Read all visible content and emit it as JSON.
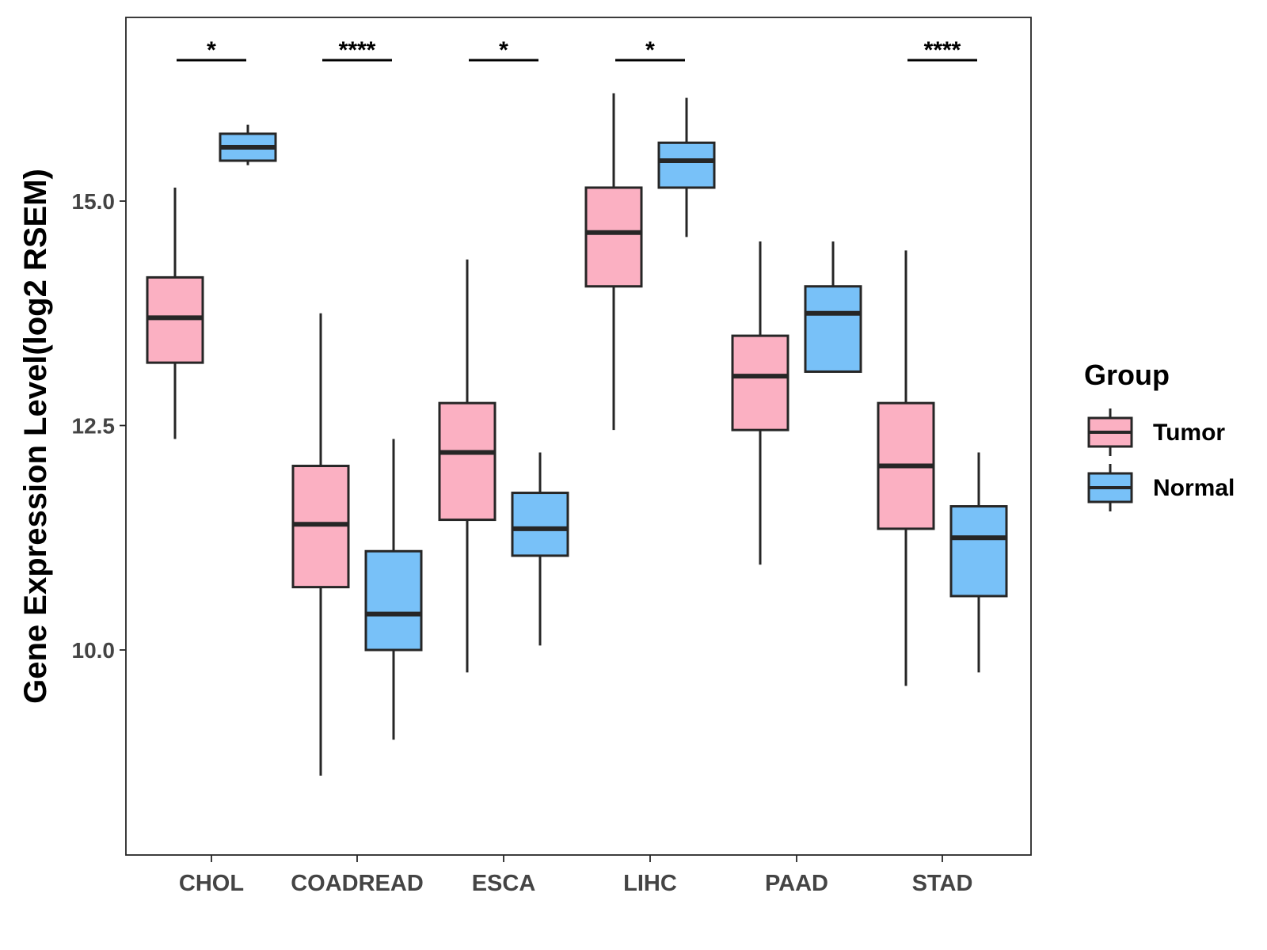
{
  "chart_data": {
    "type": "boxplot",
    "title": "",
    "xlabel": "",
    "ylabel": "Gene Expression Level(log2 RSEM)",
    "ylim": [
      7.75,
      17.1
    ],
    "yticks": [
      10.0,
      12.5,
      15.0
    ],
    "ytick_labels": [
      "10.0",
      "12.5",
      "15.0"
    ],
    "grid": false,
    "categories": [
      "CHOL",
      "COADREAD",
      "ESCA",
      "LIHC",
      "PAAD",
      "STAD"
    ],
    "legend": {
      "title": "Group",
      "placement": "right",
      "entries": [
        {
          "name": "Tumor",
          "color": "#FBB0C2"
        },
        {
          "name": "Normal",
          "color": "#78C1F8"
        }
      ]
    },
    "series": [
      {
        "name": "Tumor",
        "color": "#FBB0C2",
        "boxes": [
          {
            "category": "CHOL",
            "whisker_low": 12.35,
            "q1": 13.2,
            "median": 13.7,
            "q3": 14.15,
            "whisker_high": 15.15
          },
          {
            "category": "COADREAD",
            "whisker_low": 8.6,
            "q1": 10.7,
            "median": 11.4,
            "q3": 12.05,
            "whisker_high": 13.75
          },
          {
            "category": "ESCA",
            "whisker_low": 9.75,
            "q1": 11.45,
            "median": 12.2,
            "q3": 12.75,
            "whisker_high": 14.35
          },
          {
            "category": "LIHC",
            "whisker_low": 12.45,
            "q1": 14.05,
            "median": 14.65,
            "q3": 15.15,
            "whisker_high": 16.2
          },
          {
            "category": "PAAD",
            "whisker_low": 10.95,
            "q1": 12.45,
            "median": 13.05,
            "q3": 13.5,
            "whisker_high": 14.55
          },
          {
            "category": "STAD",
            "whisker_low": 9.6,
            "q1": 11.35,
            "median": 12.05,
            "q3": 12.75,
            "whisker_high": 14.45
          }
        ]
      },
      {
        "name": "Normal",
        "color": "#78C1F8",
        "boxes": [
          {
            "category": "CHOL",
            "whisker_low": 15.4,
            "q1": 15.45,
            "median": 15.6,
            "q3": 15.75,
            "whisker_high": 15.85
          },
          {
            "category": "COADREAD",
            "whisker_low": 9.0,
            "q1": 10.0,
            "median": 10.4,
            "q3": 11.1,
            "whisker_high": 12.35
          },
          {
            "category": "ESCA",
            "whisker_low": 10.05,
            "q1": 11.05,
            "median": 11.35,
            "q3": 11.75,
            "whisker_high": 12.2
          },
          {
            "category": "LIHC",
            "whisker_low": 14.6,
            "q1": 15.15,
            "median": 15.45,
            "q3": 15.65,
            "whisker_high": 16.15
          },
          {
            "category": "PAAD",
            "whisker_low": 13.1,
            "q1": 13.1,
            "median": 13.75,
            "q3": 14.05,
            "whisker_high": 14.55
          },
          {
            "category": "STAD",
            "whisker_low": 9.75,
            "q1": 10.6,
            "median": 11.25,
            "q3": 11.6,
            "whisker_high": 12.2
          }
        ]
      }
    ],
    "significance": [
      {
        "category": "CHOL",
        "label": "*"
      },
      {
        "category": "COADREAD",
        "label": "****"
      },
      {
        "category": "ESCA",
        "label": "*"
      },
      {
        "category": "LIHC",
        "label": "*"
      },
      {
        "category": "PAAD",
        "label": ""
      },
      {
        "category": "STAD",
        "label": "****"
      }
    ],
    "colors": {
      "tumor": "#FBB0C2",
      "normal": "#78C1F8",
      "stroke": "#262626",
      "axis_text": "#444444",
      "title_text": "#000000"
    }
  }
}
